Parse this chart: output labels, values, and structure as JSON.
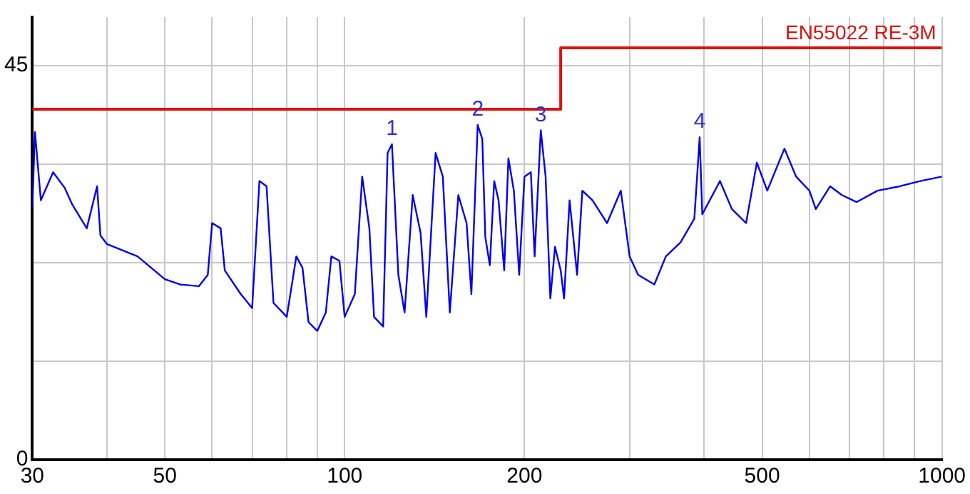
{
  "chart_data": {
    "type": "line",
    "xlim": [
      30,
      1000
    ],
    "ylim": [
      0,
      50.5
    ],
    "log": "x",
    "grid": true,
    "legend": false,
    "marker": "none",
    "xticks": [
      30,
      {
        "value": 40,
        "label": null
      },
      50,
      {
        "value": 60,
        "label": null
      },
      {
        "value": 70,
        "label": null
      },
      {
        "value": 80,
        "label": null
      },
      {
        "value": 90,
        "label": null
      },
      100,
      200,
      {
        "value": 300,
        "label": null
      },
      {
        "value": 400,
        "label": null
      },
      500,
      {
        "value": 600,
        "label": null
      },
      {
        "value": 700,
        "label": null
      },
      {
        "value": 800,
        "label": null
      },
      {
        "value": 900,
        "label": null
      },
      1000
    ],
    "yticks": [
      0,
      {
        "value": 11.25,
        "label": null
      },
      {
        "value": 22.5,
        "label": null
      },
      {
        "value": 33.75,
        "label": null
      },
      45
    ],
    "annotations": [
      {
        "text": "1",
        "x": 120,
        "y": 36
      },
      {
        "text": "2",
        "x": 167,
        "y": 38.2
      },
      {
        "text": "3",
        "x": 213,
        "y": 37.6
      },
      {
        "text": "4",
        "x": 393,
        "y": 36.8
      }
    ],
    "series": [
      {
        "color": "#0000ee",
        "x": [
          30,
          30.3,
          31,
          32.5,
          34,
          35,
          37,
          38.5,
          39,
          40,
          45,
          50,
          53,
          57,
          59,
          60,
          62,
          63,
          67,
          70,
          72,
          74,
          76,
          80,
          83,
          85,
          87,
          90,
          93,
          95,
          98,
          100,
          104,
          107,
          110,
          112,
          116,
          118,
          120,
          123,
          126,
          130,
          134,
          137,
          142,
          146,
          150,
          155,
          160,
          163,
          167,
          170,
          172,
          175,
          178,
          181,
          185,
          188,
          192,
          196,
          200,
          205,
          208,
          213,
          217,
          221,
          225,
          230,
          233,
          238,
          245,
          250,
          260,
          275,
          290,
          300,
          310,
          330,
          345,
          365,
          385,
          393,
          397,
          425,
          445,
          470,
          490,
          510,
          545,
          570,
          600,
          615,
          650,
          680,
          720,
          780,
          850,
          920,
          1000
        ],
        "values": [
          28.8,
          37.4,
          29.6,
          32.8,
          31,
          29.1,
          26.4,
          31.2,
          25.6,
          24.6,
          23.2,
          20.6,
          20,
          19.8,
          21.1,
          27,
          26.4,
          21.6,
          18.9,
          17.3,
          31.8,
          31.2,
          17.9,
          16.3,
          23.2,
          21.9,
          15.7,
          14.7,
          16.8,
          23.2,
          22.7,
          16.3,
          18.9,
          32.3,
          26.4,
          16.3,
          15.2,
          35,
          36,
          21.1,
          16.8,
          30.2,
          25.9,
          16.3,
          35,
          32.3,
          16.8,
          30.2,
          27,
          18.9,
          38.2,
          36.6,
          25.4,
          22.2,
          31.8,
          29.6,
          21.6,
          34.4,
          30.7,
          21.1,
          32.3,
          32.8,
          23.2,
          37.6,
          32.3,
          18.4,
          24.3,
          21.6,
          18.4,
          29.6,
          21.1,
          30.7,
          29.6,
          27,
          30.7,
          23.2,
          21.1,
          20,
          23.2,
          24.8,
          27.5,
          36.8,
          28,
          31.8,
          28.6,
          27,
          33.9,
          30.7,
          35.5,
          32.3,
          30.7,
          28.6,
          31.2,
          30.2,
          29.4,
          30.7,
          31.2,
          31.8,
          32.3
        ]
      },
      {
        "type": "step",
        "name": "EN55022 RE-3M",
        "color": "#dd1111",
        "x": [
          30,
          230,
          1000
        ],
        "values": [
          40,
          47,
          47
        ]
      }
    ]
  }
}
